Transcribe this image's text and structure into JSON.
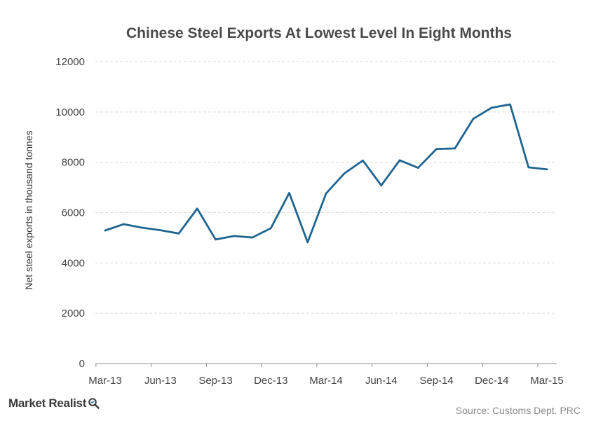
{
  "chart_data": {
    "type": "line",
    "title": "Chinese Steel Exports At Lowest Level In Eight Months",
    "xlabel": "",
    "ylabel": "Net steel exports in thousand tonnes",
    "ylim": [
      0,
      12000
    ],
    "yticks": [
      0,
      2000,
      4000,
      6000,
      8000,
      10000,
      12000
    ],
    "xtick_labels": [
      "Mar-13",
      "Jun-13",
      "Sep-13",
      "Dec-13",
      "Mar-14",
      "Jun-14",
      "Sep-14",
      "Dec-14",
      "Mar-15"
    ],
    "x": [
      "Mar-13",
      "Apr-13",
      "May-13",
      "Jun-13",
      "Jul-13",
      "Aug-13",
      "Sep-13",
      "Oct-13",
      "Nov-13",
      "Dec-13",
      "Jan-14",
      "Feb-14",
      "Mar-14",
      "Apr-14",
      "May-14",
      "Jun-14",
      "Jul-14",
      "Aug-14",
      "Sep-14",
      "Oct-14",
      "Nov-14",
      "Dec-14",
      "Jan-15",
      "Feb-15",
      "Mar-15"
    ],
    "series": [
      {
        "values": [
          5290,
          5540,
          5400,
          5300,
          5170,
          6160,
          4930,
          5070,
          5010,
          5380,
          6780,
          4820,
          6760,
          7560,
          8070,
          7080,
          8080,
          7780,
          8530,
          8550,
          9730,
          10170,
          10300,
          7800,
          7720
        ]
      }
    ],
    "grid": true,
    "line_color": "#1f6591"
  },
  "branding": {
    "name": "Market Realist",
    "icon": "magnifier-icon"
  },
  "source": "Source: Customs Dept. PRC"
}
